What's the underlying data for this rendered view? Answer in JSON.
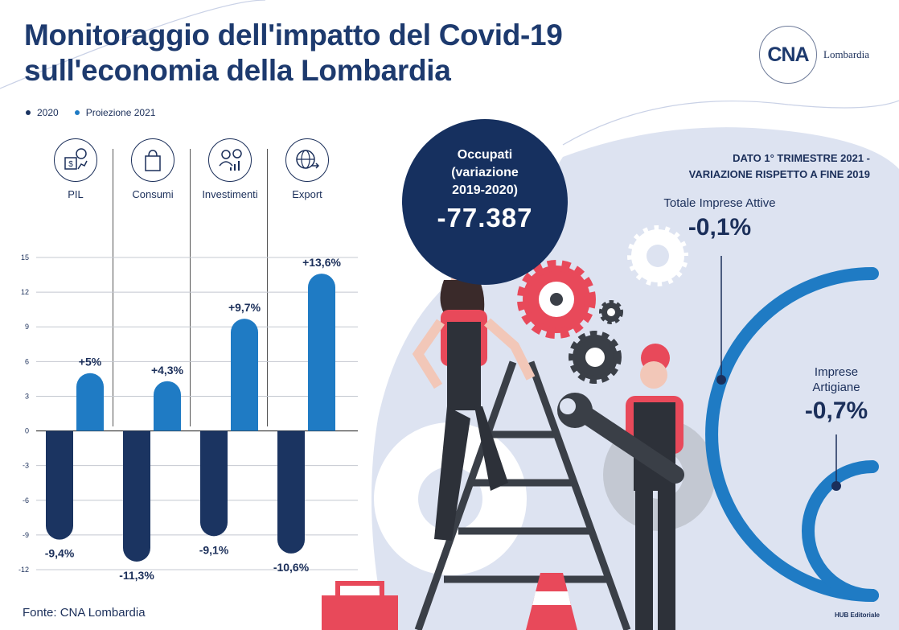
{
  "title": "Monitoraggio dell'impatto del Covid-19 sull'economia della Lombardia",
  "logo": {
    "mark": "CNA",
    "text": "Lombardia"
  },
  "legend": [
    {
      "label": "2020",
      "color": "#1b3461"
    },
    {
      "label": "Proiezione 2021",
      "color": "#1f7bc4"
    }
  ],
  "categories": [
    {
      "label": "PIL",
      "icon": "money-growth-icon"
    },
    {
      "label": "Consumi",
      "icon": "shopping-bag-icon"
    },
    {
      "label": "Investimenti",
      "icon": "investor-chart-icon"
    },
    {
      "label": "Export",
      "icon": "globe-arrow-icon"
    }
  ],
  "chart_data": {
    "type": "bar",
    "categories": [
      "PIL",
      "Consumi",
      "Investimenti",
      "Export"
    ],
    "series": [
      {
        "name": "2020",
        "values": [
          -9.4,
          -11.3,
          -9.1,
          -10.6
        ],
        "labels": [
          "-9,4%",
          "-11,3%",
          "-9,1%",
          "-10,6%"
        ],
        "color": "#1b3461"
      },
      {
        "name": "Proiezione 2021",
        "values": [
          5,
          4.3,
          9.7,
          13.6
        ],
        "labels": [
          "+5%",
          "+4,3%",
          "+9,7%",
          "+13,6%"
        ],
        "color": "#1f7bc4"
      }
    ],
    "yticks": [
      "15",
      "12",
      "9",
      "6",
      "3",
      "0",
      "-3",
      "-6",
      "-9",
      "-12"
    ],
    "ylim": [
      -12,
      15
    ],
    "grid": true
  },
  "occupati": {
    "label_line1": "Occupati",
    "label_line2": "(variazione",
    "label_line3": "2019-2020)",
    "value": "-77.387"
  },
  "dato": {
    "title_line1": "DATO 1° TRIMESTRE 2021 -",
    "title_line2": "VARIAZIONE RISPETTO A FINE 2019",
    "totale_label": "Totale Imprese Attive",
    "totale_value": "-0,1%",
    "artigiane_label_line1": "Imprese",
    "artigiane_label_line2": "Artigiane",
    "artigiane_value": "-0,7%"
  },
  "source": "Fonte: CNA Lombardia",
  "credit": "HUB Editoriale",
  "colors": {
    "navy": "#16305f",
    "blue": "#1f7bc4",
    "pale_blue": "#dde3f1",
    "red": "#e8495a",
    "dark_gray": "#3a3f47"
  }
}
